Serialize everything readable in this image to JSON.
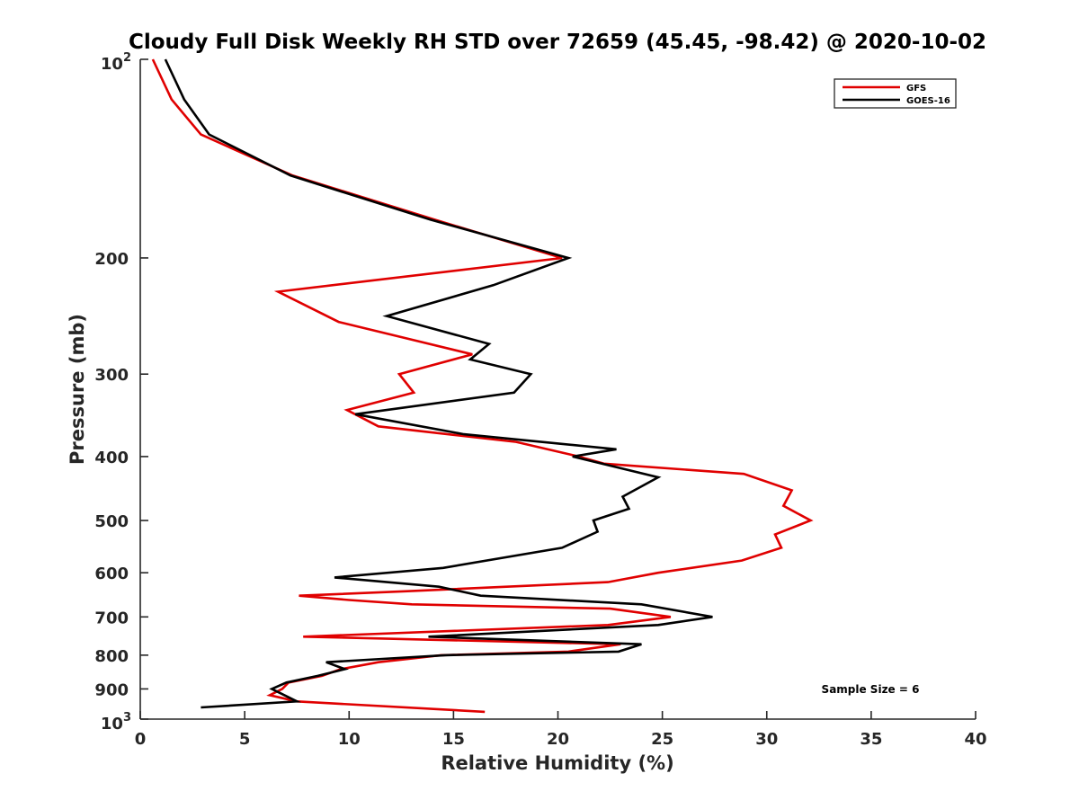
{
  "chart_data": {
    "type": "line",
    "title": "Cloudy Full Disk Weekly RH STD over 72659 (45.45, -98.42) @ 2020-10-02",
    "xlabel": "Relative Humidity (%)",
    "ylabel": "Pressure (mb)",
    "xlim": [
      0,
      40
    ],
    "ylim": [
      100,
      1000
    ],
    "y_scale": "log",
    "y_reversed": true,
    "x_ticks": [
      "0",
      "5",
      "10",
      "15",
      "20",
      "25",
      "30",
      "35",
      "40"
    ],
    "y_ticks": [
      {
        "value": 100,
        "base": "10",
        "exp": "2"
      },
      {
        "value": 200,
        "label": "200"
      },
      {
        "value": 300,
        "label": "300"
      },
      {
        "value": 400,
        "label": "400"
      },
      {
        "value": 500,
        "label": "500"
      },
      {
        "value": 600,
        "label": "600"
      },
      {
        "value": 700,
        "label": "700"
      },
      {
        "value": 800,
        "label": "800"
      },
      {
        "value": 900,
        "label": "900"
      },
      {
        "value": 1000,
        "base": "10",
        "exp": "3"
      }
    ],
    "grid": false,
    "legend_position": "top-right",
    "series": [
      {
        "name": "GFS",
        "color": "#e00000",
        "points": [
          [
            0.6,
            100
          ],
          [
            1.5,
            115
          ],
          [
            2.9,
            130
          ],
          [
            7.3,
            150
          ],
          [
            14.1,
            175
          ],
          [
            20.2,
            200
          ],
          [
            6.6,
            225
          ],
          [
            9.5,
            250
          ],
          [
            15.9,
            280
          ],
          [
            12.4,
            300
          ],
          [
            13.1,
            320
          ],
          [
            9.9,
            340
          ],
          [
            11.4,
            360
          ],
          [
            18.0,
            380
          ],
          [
            21.0,
            400
          ],
          [
            22.2,
            410
          ],
          [
            28.9,
            425
          ],
          [
            31.2,
            450
          ],
          [
            30.8,
            475
          ],
          [
            32.1,
            500
          ],
          [
            30.4,
            525
          ],
          [
            30.7,
            550
          ],
          [
            28.8,
            575
          ],
          [
            24.8,
            600
          ],
          [
            22.4,
            620
          ],
          [
            12.8,
            640
          ],
          [
            7.6,
            650
          ],
          [
            10.0,
            660
          ],
          [
            13.0,
            670
          ],
          [
            22.5,
            680
          ],
          [
            25.4,
            700
          ],
          [
            22.4,
            720
          ],
          [
            7.8,
            750
          ],
          [
            23.0,
            770
          ],
          [
            20.5,
            790
          ],
          [
            14.4,
            800
          ],
          [
            11.4,
            820
          ],
          [
            9.6,
            840
          ],
          [
            8.7,
            860
          ],
          [
            7.1,
            880
          ],
          [
            6.8,
            900
          ],
          [
            6.2,
            920
          ],
          [
            7.5,
            940
          ],
          [
            16.5,
            975
          ]
        ]
      },
      {
        "name": "GOES-16",
        "color": "#000000",
        "points": [
          [
            1.2,
            100
          ],
          [
            2.1,
            115
          ],
          [
            3.3,
            130
          ],
          [
            7.2,
            150
          ],
          [
            13.9,
            175
          ],
          [
            20.5,
            200
          ],
          [
            16.9,
            220
          ],
          [
            11.8,
            245
          ],
          [
            16.7,
            270
          ],
          [
            15.8,
            285
          ],
          [
            18.7,
            300
          ],
          [
            17.9,
            320
          ],
          [
            10.3,
            345
          ],
          [
            15.5,
            370
          ],
          [
            22.8,
            390
          ],
          [
            20.7,
            400
          ],
          [
            24.8,
            430
          ],
          [
            23.1,
            460
          ],
          [
            23.4,
            480
          ],
          [
            21.7,
            500
          ],
          [
            21.9,
            520
          ],
          [
            20.2,
            550
          ],
          [
            14.5,
            590
          ],
          [
            9.3,
            610
          ],
          [
            14.3,
            630
          ],
          [
            16.3,
            650
          ],
          [
            24.0,
            670
          ],
          [
            27.4,
            700
          ],
          [
            24.8,
            720
          ],
          [
            13.8,
            750
          ],
          [
            24.0,
            770
          ],
          [
            22.9,
            790
          ],
          [
            14.6,
            800
          ],
          [
            8.9,
            820
          ],
          [
            9.8,
            840
          ],
          [
            8.5,
            860
          ],
          [
            7.0,
            880
          ],
          [
            6.3,
            900
          ],
          [
            7.5,
            940
          ],
          [
            2.9,
            960
          ]
        ]
      }
    ],
    "annotation": "Sample Size = 6"
  }
}
